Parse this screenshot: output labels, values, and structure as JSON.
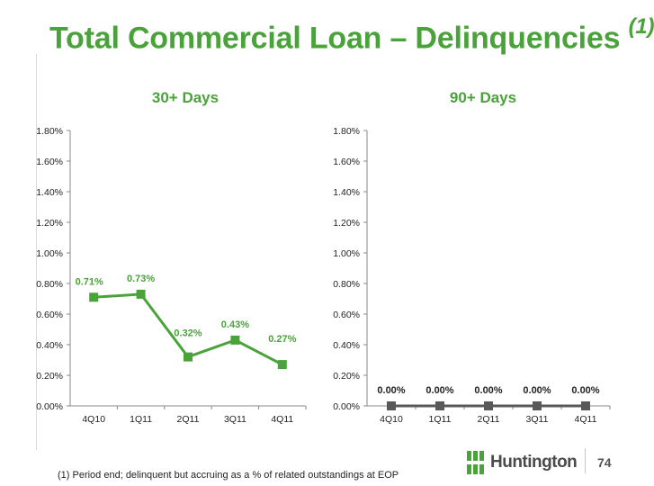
{
  "slide": {
    "title": "Total Commercial Loan – Delinquencies",
    "title_note": "(1)",
    "footnote": "(1)  Period end; delinquent but accruing as a % of related outstandings at EOP",
    "page_number": "74",
    "logo_text": "Huntington"
  },
  "colors": {
    "accent": "#4aa23a",
    "gray_series": "#595959"
  },
  "chart_data": [
    {
      "type": "line",
      "title": "30+ Days",
      "categories": [
        "4Q10",
        "1Q11",
        "2Q11",
        "3Q11",
        "4Q11"
      ],
      "values": [
        0.71,
        0.73,
        0.32,
        0.43,
        0.27
      ],
      "data_labels": [
        "0.71%",
        "0.73%",
        "0.32%",
        "0.43%",
        "0.27%"
      ],
      "ylim": [
        0,
        1.8
      ],
      "yticks": [
        "0.00%",
        "0.20%",
        "0.40%",
        "0.60%",
        "0.80%",
        "1.00%",
        "1.20%",
        "1.40%",
        "1.60%",
        "1.80%"
      ],
      "color": "#4aa23a",
      "grid": false
    },
    {
      "type": "line",
      "title": "90+ Days",
      "categories": [
        "4Q10",
        "1Q11",
        "2Q11",
        "3Q11",
        "4Q11"
      ],
      "values": [
        0.0,
        0.0,
        0.0,
        0.0,
        0.0
      ],
      "data_labels": [
        "0.00%",
        "0.00%",
        "0.00%",
        "0.00%",
        "0.00%"
      ],
      "ylim": [
        0,
        1.8
      ],
      "yticks": [
        "0.00%",
        "0.20%",
        "0.40%",
        "0.60%",
        "0.80%",
        "1.00%",
        "1.20%",
        "1.40%",
        "1.60%",
        "1.80%"
      ],
      "color": "#595959",
      "grid": false
    }
  ]
}
